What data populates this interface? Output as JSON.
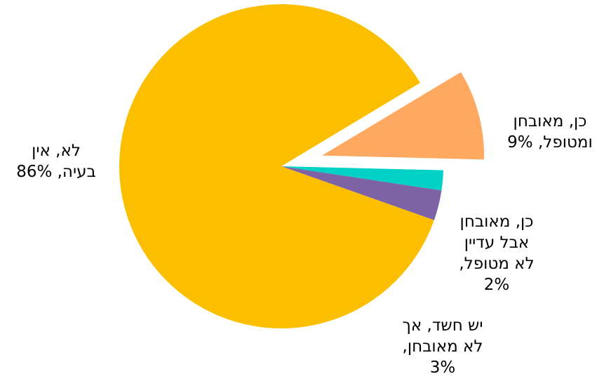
{
  "chart_data": {
    "type": "pie",
    "slices": [
      {
        "label_lines": [
          "כן, מאובחן",
          "ומטופל, 9%"
        ],
        "value": 9,
        "color": "#FFA862",
        "exploded": true
      },
      {
        "label_lines": [
          "כן, מאובחן",
          "אבל עדיין",
          "לא מטופל,",
          "2%"
        ],
        "value": 2,
        "color": "#00D1C6",
        "exploded": false
      },
      {
        "label_lines": [
          "יש חשד, אך",
          "לא מאובחן,",
          "3%"
        ],
        "value": 3,
        "color": "#7E62A6",
        "exploded": false
      },
      {
        "label_lines": [
          "לא, אין",
          "בעיה, 86%"
        ],
        "value": 86,
        "color": "#FCBF00",
        "exploded": false
      }
    ]
  }
}
